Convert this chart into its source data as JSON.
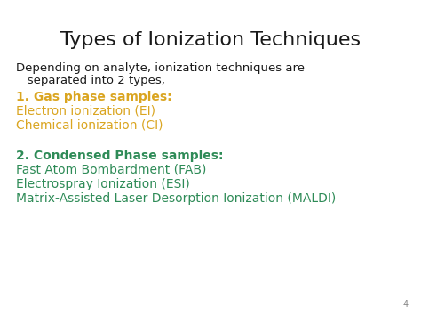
{
  "background_color": "#ffffff",
  "title": "Types of Ionization Techniques",
  "title_color": "#1a1a1a",
  "title_fontsize": 16,
  "subtitle_line1": "Depending on analyte, ionization techniques are",
  "subtitle_line2": "   separated into 2 types,",
  "subtitle_color": "#1a1a1a",
  "subtitle_fontsize": 9.5,
  "section1_header": "1. Gas phase samples:",
  "section1_header_color": "#DAA520",
  "section1_header_fontsize": 10,
  "section1_items": [
    "Electron ionization (EI)",
    "Chemical ionization (CI)"
  ],
  "section1_color": "#DAA520",
  "section1_fontsize": 10,
  "section2_header": "2. Condensed Phase samples:",
  "section2_header_color": "#2E8B57",
  "section2_header_fontsize": 10,
  "section2_items": [
    "Fast Atom Bombardment (FAB)",
    "Electrospray Ionization (ESI)",
    "Matrix-Assisted Laser Desorption Ionization (MALDI)"
  ],
  "section2_color": "#2E8B57",
  "section2_fontsize": 10,
  "page_number": "4",
  "page_num_color": "#888888",
  "page_num_fontsize": 7
}
